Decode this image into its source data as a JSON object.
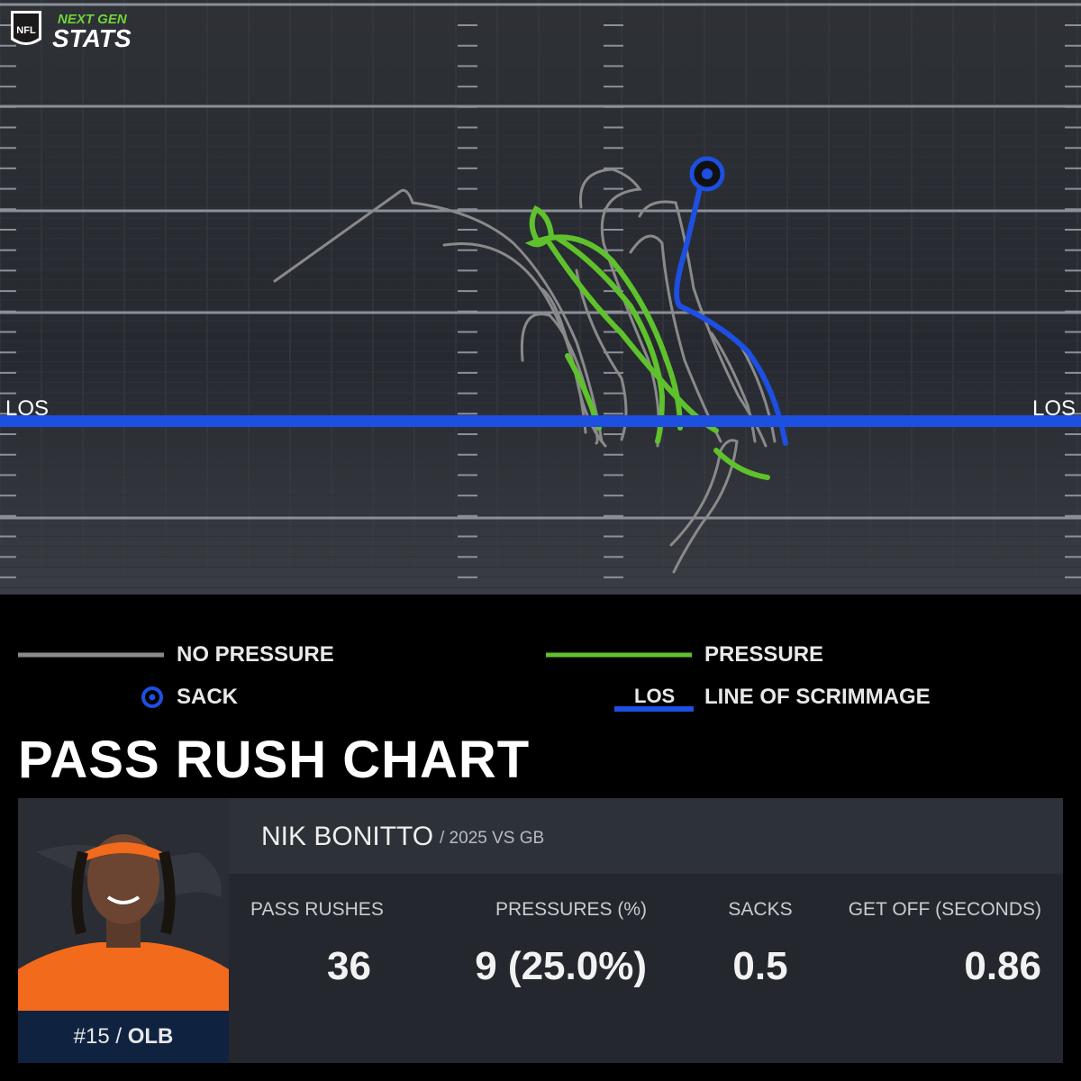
{
  "logo": {
    "shield": "NFL",
    "line1": "NEXT GEN",
    "line2": "STATS"
  },
  "field": {
    "los_left": "LOS",
    "los_right": "LOS"
  },
  "legend": {
    "no_pressure": "NO PRESSURE",
    "pressure": "PRESSURE",
    "sack": "SACK",
    "los_icon": "LOS",
    "los": "LINE OF SCRIMMAGE"
  },
  "title": "PASS RUSH CHART",
  "player": {
    "name": "NIK BONITTO",
    "context": "/ 2025 VS GB",
    "number": "#15",
    "separator": "/",
    "position": "OLB"
  },
  "stats": [
    {
      "label": "PASS RUSHES",
      "value": 36
    },
    {
      "label": "PRESSURES (%)",
      "value": "9 (25.0%)"
    },
    {
      "label": "SACKS",
      "value": 0.5
    },
    {
      "label": "GET OFF (SECONDS)",
      "value": 0.86
    }
  ]
}
